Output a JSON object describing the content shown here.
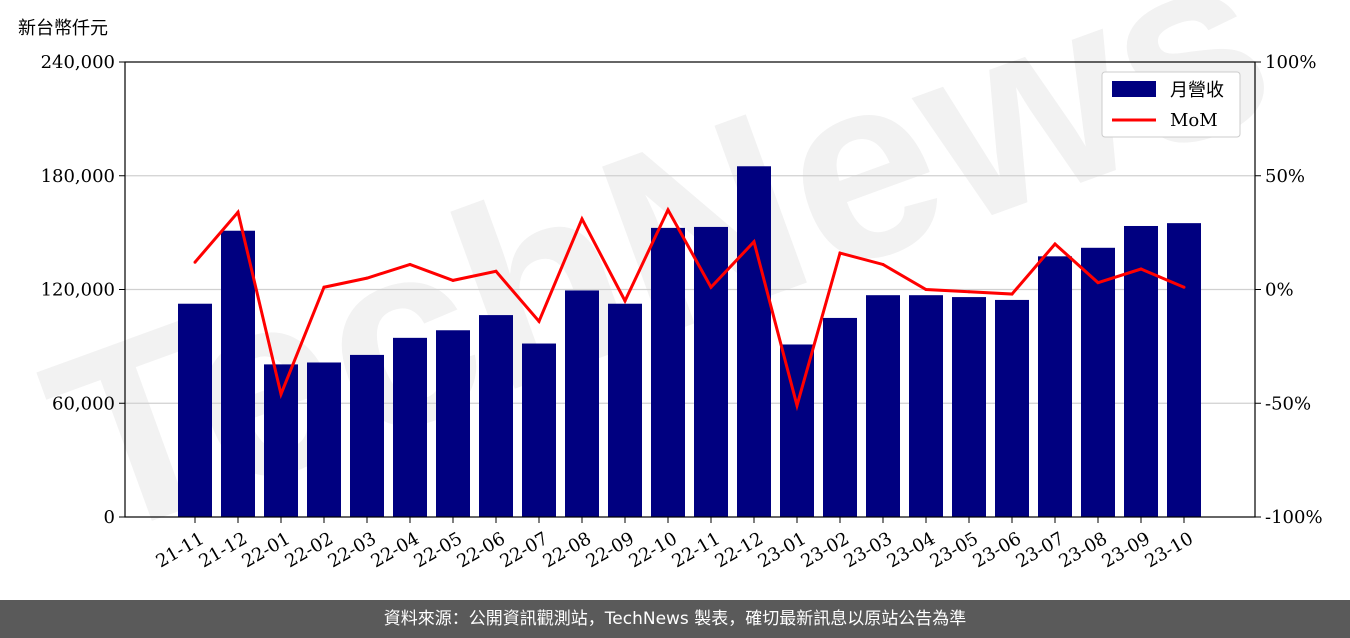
{
  "chart_data": {
    "type": "bar",
    "y_unit_label": "新台幣仟元",
    "categories": [
      "21-11",
      "21-12",
      "22-01",
      "22-02",
      "22-03",
      "22-04",
      "22-05",
      "22-06",
      "22-07",
      "22-08",
      "22-09",
      "22-10",
      "22-11",
      "22-12",
      "23-01",
      "23-02",
      "23-03",
      "23-04",
      "23-05",
      "23-06",
      "23-07",
      "23-08",
      "23-09",
      "23-10"
    ],
    "series": [
      {
        "name": "月營收",
        "type": "bar",
        "axis": "left",
        "color": "#000080",
        "values": [
          112500,
          151000,
          80500,
          81500,
          85500,
          94500,
          98500,
          106500,
          91500,
          119500,
          112500,
          152500,
          153000,
          185000,
          91000,
          105000,
          117000,
          117000,
          116000,
          114500,
          137500,
          142000,
          153500,
          155000
        ]
      },
      {
        "name": "MoM",
        "type": "line",
        "axis": "right",
        "unit": "%",
        "color": "#ff0000",
        "values": [
          12,
          34,
          -46,
          1,
          5,
          11,
          4,
          8,
          -14,
          31,
          -5,
          35,
          1,
          21,
          -51,
          16,
          11,
          0,
          -1,
          -2,
          20,
          3,
          9,
          1
        ]
      }
    ],
    "ylim": [
      0,
      240000
    ],
    "y_ticks": [
      "0",
      "60,000",
      "120,000",
      "180,000",
      "240,000"
    ],
    "y2lim": [
      -100,
      100
    ],
    "y2_ticks": [
      "-100%",
      "-50%",
      "0%",
      "50%",
      "100%"
    ],
    "grid": "horizontal",
    "legend_position": "top-right"
  },
  "watermark": "TechNews",
  "footer": {
    "text": "資料來源：公開資訊觀測站，TechNews 製表，確切最新訊息以原站公告為準"
  }
}
